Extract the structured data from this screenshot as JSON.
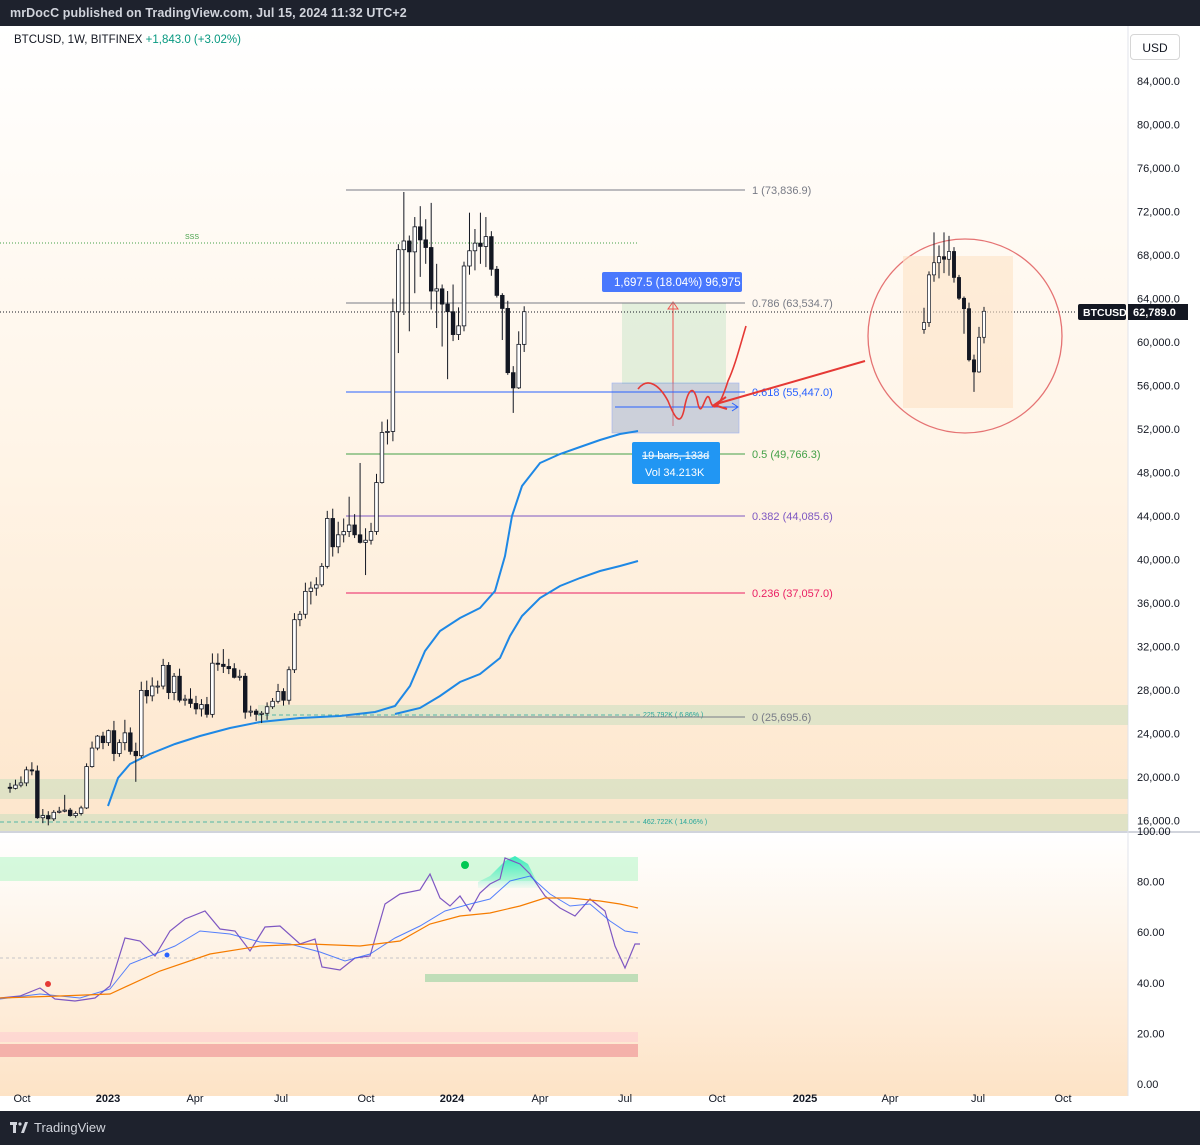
{
  "publish_bar": {
    "text": "mrDocC published on TradingView.com, Jul 15, 2024 11:32 UTC+2"
  },
  "symbol_header": {
    "symbol": "BTCUSD",
    "interval": "1W",
    "exchange": "BITFINEX",
    "change": "+1,843.0 (+3.02%)"
  },
  "currency_button": "USD",
  "footer": {
    "logo_text": "TradingView"
  },
  "colors": {
    "up": "#ffffff",
    "down": "#131722",
    "ema_fast": "#1e88e5",
    "rsi": "#7e57c2",
    "rsi_ma": "#f57c00",
    "fib_786": "#787b86",
    "fib_618": "#2962ff",
    "fib_5": "#43a047",
    "fib_382": "#7e57c2",
    "fib_236": "#e91e63",
    "circle": "#e57373"
  },
  "price_axis": {
    "ticks": [
      "84,000.0",
      "80,000.0",
      "76,000.0",
      "72,000.0",
      "68,000.0",
      "64,000.0",
      "60,000.0",
      "56,000.0",
      "52,000.0",
      "48,000.0",
      "44,000.0",
      "40,000.0",
      "36,000.0",
      "32,000.0",
      "28,000.0",
      "24,000.0",
      "20,000.0",
      "16,000.0"
    ]
  },
  "rsi_axis": {
    "ticks": [
      "100.00",
      "80.00",
      "60.00",
      "40.00",
      "20.00",
      "0.00"
    ]
  },
  "time_axis": {
    "ticks": [
      "Oct",
      "2023",
      "Apr",
      "Jul",
      "Oct",
      "2024",
      "Apr",
      "Jul",
      "Oct",
      "2025",
      "Apr",
      "Jul",
      "Oct"
    ]
  },
  "current_price": {
    "symbol": "BTCUSD",
    "value": "62,789.0"
  },
  "fib_levels": [
    {
      "label": "1 (73,836.9)"
    },
    {
      "label": "0.786 (63,534.7)"
    },
    {
      "label": "0.618 (55,447.0)"
    },
    {
      "label": "0.5 (49,766.3)"
    },
    {
      "label": "0.382 (44,085.6)"
    },
    {
      "label": "0.236 (37,057.0)"
    },
    {
      "label": "0 (25,695.6)"
    }
  ],
  "annotations": {
    "measure_top": "1,697.5 (18.04%) 96,975",
    "bars_label": "19 bars, 133d",
    "vol_label": "Vol 34.213K",
    "sss": "SSS",
    "vol_zone_1": "225.792K ( 6.86% )",
    "vol_zone_2": "462.722K ( 14.06% )"
  },
  "chart_data": {
    "type": "candlestick",
    "interval": "1W",
    "ylim": [
      16000,
      86000
    ],
    "candles": [
      {
        "o": 19100,
        "h": 19500,
        "l": 18600,
        "c": 19000
      },
      {
        "o": 19000,
        "h": 19800,
        "l": 18900,
        "c": 19300
      },
      {
        "o": 19300,
        "h": 20100,
        "l": 19100,
        "c": 19500
      },
      {
        "o": 19500,
        "h": 21000,
        "l": 19200,
        "c": 20700
      },
      {
        "o": 20700,
        "h": 21400,
        "l": 20200,
        "c": 20600
      },
      {
        "o": 20600,
        "h": 21100,
        "l": 16200,
        "c": 16300
      },
      {
        "o": 16300,
        "h": 17100,
        "l": 15800,
        "c": 16500
      },
      {
        "o": 16500,
        "h": 16900,
        "l": 15600,
        "c": 16200
      },
      {
        "o": 16200,
        "h": 17000,
        "l": 16000,
        "c": 16800
      },
      {
        "o": 16800,
        "h": 17300,
        "l": 16700,
        "c": 16900
      },
      {
        "o": 16900,
        "h": 18400,
        "l": 16800,
        "c": 17000
      },
      {
        "o": 17000,
        "h": 17200,
        "l": 16400,
        "c": 16500
      },
      {
        "o": 16500,
        "h": 16900,
        "l": 16300,
        "c": 16700
      },
      {
        "o": 16700,
        "h": 17400,
        "l": 16500,
        "c": 17200
      },
      {
        "o": 17200,
        "h": 21300,
        "l": 17100,
        "c": 21000
      },
      {
        "o": 21000,
        "h": 23300,
        "l": 20900,
        "c": 22700
      },
      {
        "o": 22700,
        "h": 23900,
        "l": 22500,
        "c": 23800
      },
      {
        "o": 23800,
        "h": 24200,
        "l": 22600,
        "c": 23200
      },
      {
        "o": 23200,
        "h": 24400,
        "l": 22900,
        "c": 24300
      },
      {
        "o": 24300,
        "h": 25200,
        "l": 21500,
        "c": 22200
      },
      {
        "o": 22200,
        "h": 23500,
        "l": 21900,
        "c": 23200
      },
      {
        "o": 23200,
        "h": 25300,
        "l": 22500,
        "c": 24100
      },
      {
        "o": 24100,
        "h": 24600,
        "l": 22100,
        "c": 22400
      },
      {
        "o": 22400,
        "h": 23200,
        "l": 19600,
        "c": 22000
      },
      {
        "o": 22000,
        "h": 28800,
        "l": 21800,
        "c": 28000
      },
      {
        "o": 28000,
        "h": 28900,
        "l": 26800,
        "c": 27500
      },
      {
        "o": 27500,
        "h": 29200,
        "l": 27000,
        "c": 28400
      },
      {
        "o": 28400,
        "h": 28900,
        "l": 27700,
        "c": 28400
      },
      {
        "o": 28400,
        "h": 30900,
        "l": 28100,
        "c": 30300
      },
      {
        "o": 30300,
        "h": 30600,
        "l": 27200,
        "c": 27800
      },
      {
        "o": 27800,
        "h": 29600,
        "l": 27100,
        "c": 29300
      },
      {
        "o": 29300,
        "h": 30000,
        "l": 26900,
        "c": 27100
      },
      {
        "o": 27100,
        "h": 27600,
        "l": 26600,
        "c": 27200
      },
      {
        "o": 27200,
        "h": 28200,
        "l": 26400,
        "c": 26800
      },
      {
        "o": 26800,
        "h": 27500,
        "l": 25800,
        "c": 26300
      },
      {
        "o": 26300,
        "h": 27200,
        "l": 25600,
        "c": 26700
      },
      {
        "o": 26700,
        "h": 27400,
        "l": 25500,
        "c": 25800
      },
      {
        "o": 25800,
        "h": 31400,
        "l": 25500,
        "c": 30500
      },
      {
        "o": 30500,
        "h": 31400,
        "l": 29800,
        "c": 30400
      },
      {
        "o": 30400,
        "h": 31800,
        "l": 29600,
        "c": 30200
      },
      {
        "o": 30200,
        "h": 30900,
        "l": 29500,
        "c": 30000
      },
      {
        "o": 30000,
        "h": 30500,
        "l": 29100,
        "c": 29200
      },
      {
        "o": 29200,
        "h": 29900,
        "l": 28900,
        "c": 29300
      },
      {
        "o": 29300,
        "h": 29600,
        "l": 25400,
        "c": 26000
      },
      {
        "o": 26000,
        "h": 26600,
        "l": 25600,
        "c": 26100
      },
      {
        "o": 26100,
        "h": 26300,
        "l": 25200,
        "c": 25800
      },
      {
        "o": 25800,
        "h": 26100,
        "l": 25000,
        "c": 25900
      },
      {
        "o": 25900,
        "h": 26900,
        "l": 25300,
        "c": 26500
      },
      {
        "o": 26500,
        "h": 27300,
        "l": 26300,
        "c": 27000
      },
      {
        "o": 27000,
        "h": 28600,
        "l": 26800,
        "c": 27900
      },
      {
        "o": 27900,
        "h": 28200,
        "l": 26600,
        "c": 27100
      },
      {
        "o": 27100,
        "h": 30200,
        "l": 26700,
        "c": 29900
      },
      {
        "o": 29900,
        "h": 35100,
        "l": 29600,
        "c": 34500
      },
      {
        "o": 34500,
        "h": 35300,
        "l": 33900,
        "c": 35000
      },
      {
        "o": 35000,
        "h": 37900,
        "l": 34600,
        "c": 37100
      },
      {
        "o": 37100,
        "h": 38000,
        "l": 35900,
        "c": 37400
      },
      {
        "o": 37400,
        "h": 38400,
        "l": 36700,
        "c": 37700
      },
      {
        "o": 37700,
        "h": 39700,
        "l": 37500,
        "c": 39400
      },
      {
        "o": 39400,
        "h": 44500,
        "l": 39200,
        "c": 43800
      },
      {
        "o": 43800,
        "h": 44700,
        "l": 40300,
        "c": 41200
      },
      {
        "o": 41200,
        "h": 43500,
        "l": 40600,
        "c": 42300
      },
      {
        "o": 42300,
        "h": 43800,
        "l": 41600,
        "c": 42600
      },
      {
        "o": 42600,
        "h": 45800,
        "l": 42100,
        "c": 43200
      },
      {
        "o": 43200,
        "h": 44200,
        "l": 42000,
        "c": 42300
      },
      {
        "o": 42300,
        "h": 48900,
        "l": 41500,
        "c": 41600
      },
      {
        "o": 41600,
        "h": 42900,
        "l": 38600,
        "c": 41800
      },
      {
        "o": 41800,
        "h": 43400,
        "l": 41400,
        "c": 42600
      },
      {
        "o": 42600,
        "h": 47900,
        "l": 42300,
        "c": 47100
      },
      {
        "o": 47100,
        "h": 52700,
        "l": 47000,
        "c": 51700
      },
      {
        "o": 51700,
        "h": 52900,
        "l": 50600,
        "c": 51800
      },
      {
        "o": 51800,
        "h": 64000,
        "l": 50900,
        "c": 62800
      },
      {
        "o": 62800,
        "h": 69000,
        "l": 59000,
        "c": 68500
      },
      {
        "o": 68500,
        "h": 73800,
        "l": 62500,
        "c": 69300
      },
      {
        "o": 69300,
        "h": 69800,
        "l": 61000,
        "c": 68300
      },
      {
        "o": 68300,
        "h": 71500,
        "l": 64500,
        "c": 70600
      },
      {
        "o": 70600,
        "h": 72500,
        "l": 66000,
        "c": 69400
      },
      {
        "o": 69400,
        "h": 71300,
        "l": 67200,
        "c": 68700
      },
      {
        "o": 68700,
        "h": 72800,
        "l": 63000,
        "c": 64700
      },
      {
        "o": 64700,
        "h": 67200,
        "l": 61300,
        "c": 64900
      },
      {
        "o": 64900,
        "h": 65300,
        "l": 59600,
        "c": 63500
      },
      {
        "o": 63500,
        "h": 64700,
        "l": 56600,
        "c": 62800
      },
      {
        "o": 62800,
        "h": 65300,
        "l": 60100,
        "c": 60700
      },
      {
        "o": 60700,
        "h": 63200,
        "l": 60200,
        "c": 61500
      },
      {
        "o": 61500,
        "h": 67400,
        "l": 61000,
        "c": 67000
      },
      {
        "o": 67000,
        "h": 71900,
        "l": 66200,
        "c": 68400
      },
      {
        "o": 68400,
        "h": 70400,
        "l": 66600,
        "c": 69100
      },
      {
        "o": 69100,
        "h": 71900,
        "l": 67200,
        "c": 68800
      },
      {
        "o": 68800,
        "h": 71500,
        "l": 66900,
        "c": 69700
      },
      {
        "o": 69700,
        "h": 70200,
        "l": 66100,
        "c": 66700
      },
      {
        "o": 66700,
        "h": 67000,
        "l": 64100,
        "c": 64300
      },
      {
        "o": 64300,
        "h": 64500,
        "l": 60200,
        "c": 63100
      },
      {
        "o": 63100,
        "h": 63800,
        "l": 57000,
        "c": 57200
      },
      {
        "o": 57200,
        "h": 57800,
        "l": 53500,
        "c": 55800
      },
      {
        "o": 55800,
        "h": 61000,
        "l": 55700,
        "c": 59800
      },
      {
        "o": 59800,
        "h": 63300,
        "l": 59100,
        "c": 62800
      }
    ]
  }
}
